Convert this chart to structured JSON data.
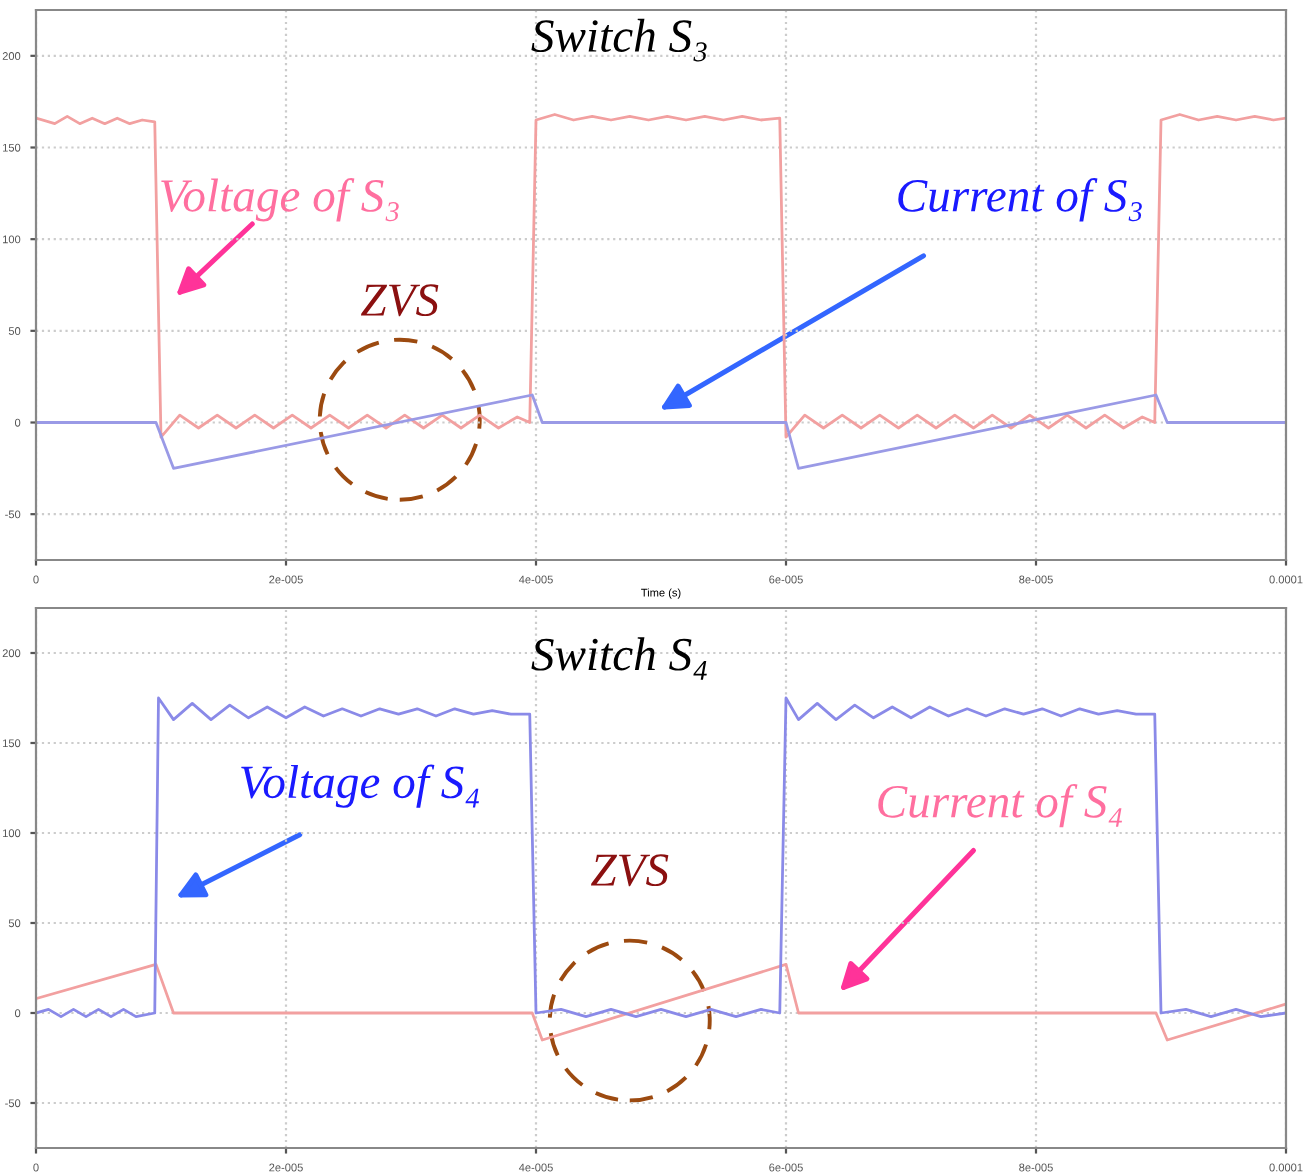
{
  "chart_data": [
    {
      "type": "line",
      "title": "Switch S₃",
      "xlabel": "Time (s)",
      "xlim": [
        0,
        0.0001
      ],
      "xticks": [
        0,
        {
          "value": 2e-05,
          "label": "2e-005"
        },
        {
          "value": 4e-05,
          "label": "4e-005"
        },
        {
          "value": 6e-05,
          "label": "6e-005"
        },
        {
          "value": 8e-05,
          "label": "8e-005"
        },
        {
          "value": 0.0001,
          "label": "0.0001"
        }
      ],
      "ylim": [
        -75,
        225
      ],
      "yticks": [
        -50,
        0,
        50,
        100,
        150,
        200
      ],
      "grid": true,
      "series": [
        {
          "color": "#f2a0a0",
          "x": [
            0,
            1.5e-06,
            2.5e-06,
            3.5e-06,
            4.5e-06,
            5.5e-06,
            6.5e-06,
            7.5e-06,
            8.5e-06,
            9.5e-06,
            1e-05,
            1.15e-05,
            1.3e-05,
            1.45e-05,
            1.6e-05,
            1.75e-05,
            1.9e-05,
            2.05e-05,
            2.2e-05,
            2.35e-05,
            2.5e-05,
            2.65e-05,
            2.8e-05,
            2.95e-05,
            3.1e-05,
            3.25e-05,
            3.4e-05,
            3.55e-05,
            3.7e-05,
            3.85e-05,
            3.95e-05,
            4e-05,
            4.15e-05,
            4.3e-05,
            4.45e-05,
            4.6e-05,
            4.75e-05,
            4.9e-05,
            5.05e-05,
            5.2e-05,
            5.35e-05,
            5.5e-05,
            5.65e-05,
            5.8e-05,
            5.95e-05,
            6e-05,
            6.15e-05,
            6.3e-05,
            6.45e-05,
            6.6e-05,
            6.75e-05,
            6.9e-05,
            7.05e-05,
            7.2e-05,
            7.35e-05,
            7.5e-05,
            7.65e-05,
            7.8e-05,
            7.95e-05,
            8.1e-05,
            8.25e-05,
            8.4e-05,
            8.55e-05,
            8.7e-05,
            8.85e-05,
            8.95e-05,
            9e-05,
            9.15e-05,
            9.3e-05,
            9.45e-05,
            9.6e-05,
            9.75e-05,
            9.9e-05,
            0.0001
          ],
          "values": [
            166,
            163,
            167,
            163,
            166,
            163,
            166,
            163,
            165,
            164,
            -8,
            4,
            -3,
            4,
            -3,
            4,
            -3,
            4,
            -3,
            4,
            -3,
            4,
            -3,
            4,
            -3,
            4,
            -3,
            4,
            -3,
            3,
            0,
            165,
            168,
            165,
            167,
            165,
            167,
            165,
            167,
            165,
            167,
            165,
            167,
            165,
            166,
            -8,
            4,
            -3,
            4,
            -3,
            4,
            -3,
            4,
            -3,
            4,
            -3,
            4,
            -3,
            4,
            -3,
            4,
            -3,
            4,
            -3,
            3,
            0,
            165,
            168,
            165,
            167,
            165,
            167,
            165,
            166
          ]
        },
        {
          "color": "#9a9ae6",
          "x": [
            0,
            9.6e-06,
            1.1e-05,
            3.97e-05,
            4.05e-05,
            6e-05,
            6.1e-05,
            8.96e-05,
            9.05e-05,
            0.0001
          ],
          "values": [
            0,
            0,
            -25,
            15,
            0,
            0,
            -25,
            15,
            0,
            0
          ]
        }
      ],
      "annotations": [
        "Voltage of S₃",
        "Current of S₃",
        "ZVS"
      ]
    },
    {
      "type": "line",
      "title": "Switch S₄",
      "xlim": [
        0,
        0.0001
      ],
      "xticks": [
        0,
        {
          "value": 2e-05,
          "label": "2e-005"
        },
        {
          "value": 4e-05,
          "label": "4e-005"
        },
        {
          "value": 6e-05,
          "label": "6e-005"
        },
        {
          "value": 8e-05,
          "label": "8e-005"
        },
        {
          "value": 0.0001,
          "label": "0.0001"
        }
      ],
      "ylim": [
        -75,
        225
      ],
      "yticks": [
        -50,
        0,
        50,
        100,
        150,
        200
      ],
      "grid": true,
      "series": [
        {
          "color": "#f2a0a0",
          "x": [
            0,
            9.6e-06,
            1.1e-05,
            3.97e-05,
            4.05e-05,
            6e-05,
            6.1e-05,
            8.96e-05,
            9.05e-05,
            0.0001
          ],
          "values": [
            8,
            27,
            0,
            0,
            -15,
            27,
            0,
            0,
            -15,
            5
          ]
        },
        {
          "color": "#8a8ae8",
          "x": [
            0,
            1e-06,
            2e-06,
            3e-06,
            4e-06,
            5e-06,
            6e-06,
            7e-06,
            8e-06,
            9.5e-06,
            9.8e-06,
            1.1e-05,
            1.25e-05,
            1.4e-05,
            1.55e-05,
            1.7e-05,
            1.85e-05,
            2e-05,
            2.15e-05,
            2.3e-05,
            2.45e-05,
            2.6e-05,
            2.75e-05,
            2.9e-05,
            3.05e-05,
            3.2e-05,
            3.35e-05,
            3.5e-05,
            3.65e-05,
            3.8e-05,
            3.95e-05,
            4e-05,
            4.2e-05,
            4.4e-05,
            4.6e-05,
            4.8e-05,
            5e-05,
            5.2e-05,
            5.4e-05,
            5.6e-05,
            5.8e-05,
            5.95e-05,
            6e-05,
            6.1e-05,
            6.25e-05,
            6.4e-05,
            6.55e-05,
            6.7e-05,
            6.85e-05,
            7e-05,
            7.15e-05,
            7.3e-05,
            7.45e-05,
            7.6e-05,
            7.75e-05,
            7.9e-05,
            8.05e-05,
            8.2e-05,
            8.35e-05,
            8.5e-05,
            8.65e-05,
            8.8e-05,
            8.95e-05,
            9e-05,
            9.2e-05,
            9.4e-05,
            9.6e-05,
            9.8e-05,
            0.0001
          ],
          "values": [
            0,
            2,
            -2,
            2,
            -2,
            2,
            -2,
            2,
            -2,
            0,
            175,
            163,
            172,
            163,
            171,
            164,
            170,
            164,
            170,
            165,
            169,
            165,
            169,
            166,
            169,
            165,
            169,
            166,
            168,
            166,
            166,
            0,
            2,
            -2,
            2,
            -2,
            2,
            -2,
            2,
            -2,
            2,
            0,
            175,
            163,
            172,
            163,
            171,
            164,
            170,
            164,
            170,
            165,
            169,
            165,
            169,
            166,
            169,
            165,
            169,
            166,
            168,
            166,
            166,
            0,
            2,
            -2,
            2,
            -2,
            0
          ]
        }
      ],
      "annotations": [
        "Voltage of S₄",
        "Current of S₄",
        "ZVS"
      ]
    }
  ]
}
